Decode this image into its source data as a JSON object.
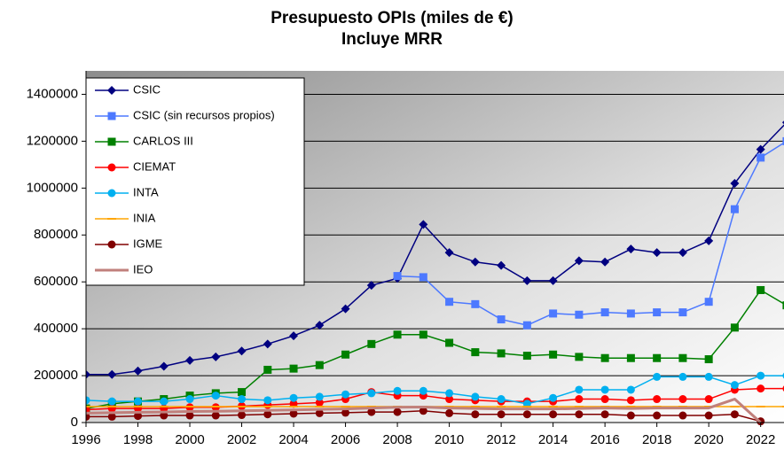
{
  "chart_data": {
    "type": "line",
    "title": "Presupuesto OPIs (miles de €)",
    "subtitle": "Incluye MRR",
    "x": [
      1996,
      1997,
      1998,
      1999,
      2000,
      2001,
      2002,
      2003,
      2004,
      2005,
      2006,
      2007,
      2008,
      2009,
      2010,
      2011,
      2012,
      2013,
      2014,
      2015,
      2016,
      2017,
      2018,
      2019,
      2020,
      2021,
      2022,
      2023
    ],
    "xlim": [
      1996,
      2022.9
    ],
    "xticks": [
      1996,
      1998,
      2000,
      2002,
      2004,
      2006,
      2008,
      2010,
      2012,
      2014,
      2016,
      2018,
      2020,
      2022
    ],
    "ylim": [
      0,
      1500000
    ],
    "yticks": [
      0,
      200000,
      400000,
      600000,
      800000,
      1000000,
      1200000,
      1400000
    ],
    "grid": true,
    "legend": "upper left",
    "series": [
      {
        "name": "CSIC",
        "color": "#000080",
        "marker": "diamond",
        "values": [
          205000,
          205000,
          220000,
          240000,
          265000,
          280000,
          305000,
          335000,
          370000,
          415000,
          485000,
          585000,
          615000,
          845000,
          725000,
          685000,
          670000,
          605000,
          605000,
          690000,
          685000,
          740000,
          725000,
          725000,
          775000,
          1020000,
          1165000,
          1280000
        ]
      },
      {
        "name": "CSIC (sin recursos propios)",
        "color": "#4d79ff",
        "marker": "square",
        "values": [
          null,
          null,
          null,
          null,
          null,
          null,
          null,
          null,
          null,
          null,
          null,
          null,
          625000,
          620000,
          515000,
          505000,
          440000,
          415000,
          465000,
          460000,
          470000,
          465000,
          470000,
          470000,
          515000,
          910000,
          1130000,
          1200000
        ]
      },
      {
        "name": "CARLOS III",
        "color": "#008000",
        "marker": "square",
        "values": [
          60000,
          80000,
          90000,
          100000,
          115000,
          125000,
          130000,
          225000,
          230000,
          245000,
          290000,
          335000,
          375000,
          375000,
          340000,
          300000,
          295000,
          285000,
          290000,
          280000,
          275000,
          275000,
          275000,
          275000,
          270000,
          405000,
          565000,
          500000
        ]
      },
      {
        "name": "CIEMAT",
        "color": "#ff0000",
        "marker": "circle",
        "values": [
          55000,
          60000,
          60000,
          60000,
          65000,
          65000,
          70000,
          75000,
          80000,
          85000,
          100000,
          130000,
          115000,
          115000,
          100000,
          95000,
          90000,
          90000,
          90000,
          100000,
          100000,
          95000,
          100000,
          100000,
          100000,
          140000,
          145000,
          145000
        ]
      },
      {
        "name": "INTA",
        "color": "#00b0f0",
        "marker": "circle",
        "values": [
          95000,
          90000,
          90000,
          90000,
          100000,
          115000,
          100000,
          95000,
          105000,
          110000,
          120000,
          125000,
          135000,
          135000,
          125000,
          110000,
          100000,
          80000,
          105000,
          140000,
          140000,
          140000,
          195000,
          195000,
          195000,
          160000,
          200000,
          200000
        ]
      },
      {
        "name": "INIA",
        "color": "#ffa500",
        "marker": "dash",
        "values": [
          68000,
          68000,
          68000,
          68000,
          68000,
          68000,
          68000,
          68000,
          68000,
          68000,
          68000,
          68000,
          68000,
          68000,
          68000,
          68000,
          68000,
          68000,
          68000,
          68000,
          68000,
          68000,
          68000,
          68000,
          68000,
          68000,
          68000,
          68000
        ]
      },
      {
        "name": "IGME",
        "color": "#800000",
        "marker": "circle",
        "values": [
          25000,
          25000,
          28000,
          30000,
          30000,
          30000,
          32000,
          35000,
          38000,
          40000,
          42000,
          45000,
          45000,
          50000,
          40000,
          35000,
          35000,
          35000,
          35000,
          35000,
          35000,
          30000,
          30000,
          30000,
          30000,
          35000,
          5000,
          null
        ]
      },
      {
        "name": "IEO",
        "color": "#c0807c",
        "marker": "none",
        "values": [
          40000,
          42000,
          44000,
          45000,
          47000,
          48000,
          50000,
          52000,
          54000,
          56000,
          58000,
          62000,
          65000,
          66000,
          62000,
          60000,
          58000,
          58000,
          58000,
          60000,
          62000,
          60000,
          62000,
          62000,
          62000,
          100000,
          0,
          null
        ]
      }
    ]
  }
}
